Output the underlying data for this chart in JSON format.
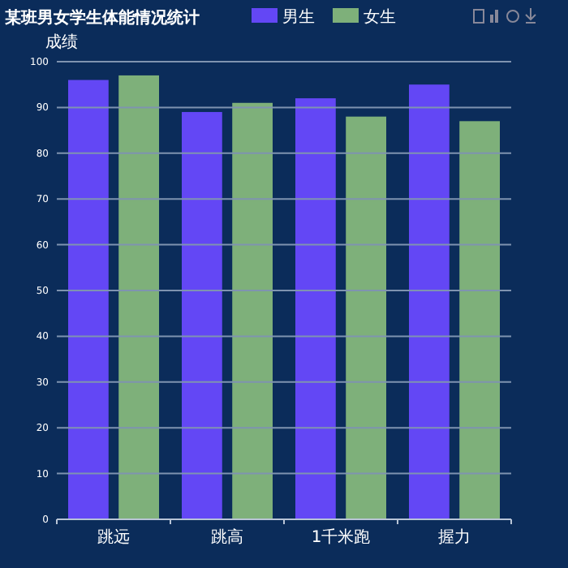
{
  "chart_data": {
    "type": "bar",
    "title": "某班男女学生体能情况统计",
    "ylabel": "成绩",
    "categories": [
      "跳远",
      "跳高",
      "1千米跑",
      "握力"
    ],
    "series": [
      {
        "name": "男生",
        "color": "#6347f5",
        "values": [
          96,
          89,
          92,
          95
        ]
      },
      {
        "name": "女生",
        "color": "#7eb07a",
        "values": [
          97,
          91,
          88,
          87
        ]
      }
    ],
    "ylim": [
      0,
      100
    ],
    "yticks": [
      0,
      10,
      20,
      30,
      40,
      50,
      60,
      70,
      80,
      90,
      100
    ],
    "grid": "y",
    "legend": "top"
  }
}
